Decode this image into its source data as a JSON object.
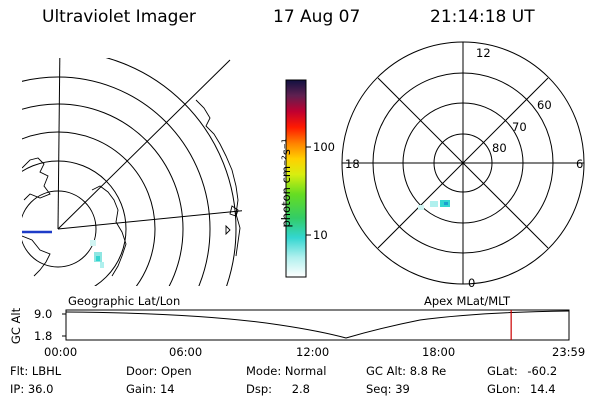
{
  "header": {
    "instrument": "Ultraviolet Imager",
    "date": "17 Aug 07",
    "time": "21:14:18 UT"
  },
  "colorbar": {
    "unit_label": "photon cm⁻²s⁻¹",
    "ticks": [
      "100",
      "10"
    ]
  },
  "polar_plot": {
    "mlt_labels": [
      "12",
      "18",
      "6",
      "0"
    ],
    "lat_labels": [
      "60",
      "70",
      "80"
    ]
  },
  "panel_labels": {
    "geographic": "Geographic Lat/Lon",
    "apex": "Apex MLat/MLT"
  },
  "altitude_plot": {
    "ylabel": "GC Alt",
    "yticks": [
      "9.0",
      "1.8"
    ],
    "xticks": [
      "00:00",
      "06:00",
      "12:00",
      "18:00",
      "23:59"
    ],
    "current_time_hours": 21.24
  },
  "status": {
    "row1": [
      {
        "label": "Flt:",
        "value": "LBHL"
      },
      {
        "label": "Door:",
        "value": "Open"
      },
      {
        "label": "Mode:",
        "value": "Normal"
      },
      {
        "label": "GC Alt:",
        "value": "8.8 Re"
      },
      {
        "label": "GLat:",
        "value": "-60.2"
      }
    ],
    "row2": [
      {
        "label": "IP:",
        "value": "36.0"
      },
      {
        "label": "Gain:",
        "value": "14"
      },
      {
        "label": "Dsp:",
        "value": "2.8"
      },
      {
        "label": "Seq:",
        "value": "39"
      },
      {
        "label": "GLon:",
        "value": "14.4"
      }
    ]
  },
  "colors": {
    "marker": "#cc0000",
    "equator_line": "#1e3cc8"
  }
}
